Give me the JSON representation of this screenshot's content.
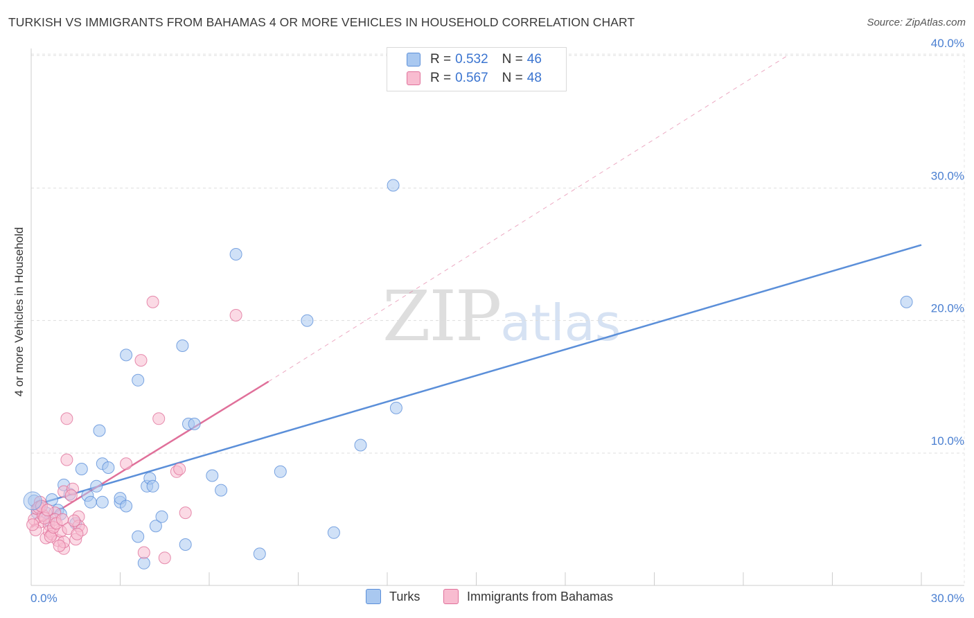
{
  "title": "TURKISH VS IMMIGRANTS FROM BAHAMAS 4 OR MORE VEHICLES IN HOUSEHOLD CORRELATION CHART",
  "source": "Source: ZipAtlas.com",
  "watermark": {
    "zip": "ZIP",
    "atlas": "atlas"
  },
  "legend": {
    "rows": [
      {
        "r_label": "R =",
        "r_value": "0.532",
        "n_label": "N =",
        "n_value": "46",
        "color": "#a9c8f0",
        "border": "#5b8fd9"
      },
      {
        "r_label": "R =",
        "r_value": "0.567",
        "n_label": "N =",
        "n_value": "48",
        "color": "#f8bcd0",
        "border": "#e0709a"
      }
    ]
  },
  "bottom_legend": [
    {
      "label": "Turks",
      "color": "#a9c8f0",
      "border": "#5b8fd9"
    },
    {
      "label": "Immigrants from Bahamas",
      "color": "#f8bcd0",
      "border": "#e0709a"
    }
  ],
  "chart_data": {
    "type": "scatter",
    "title": "TURKISH VS IMMIGRANTS FROM BAHAMAS 4 OR MORE VEHICLES IN HOUSEHOLD CORRELATION CHART",
    "xlabel": "",
    "ylabel": "4 or more Vehicles in Household",
    "xlim": [
      0,
      30
    ],
    "ylim": [
      0,
      41
    ],
    "x_tick_labels": [
      "0.0%",
      "30.0%"
    ],
    "y_ticks": [
      10,
      20,
      30,
      40
    ],
    "y_tick_labels": [
      "10.0%",
      "20.0%",
      "30.0%",
      "40.0%"
    ],
    "grid": true,
    "series": [
      {
        "name": "Turks",
        "color": "#5b8fd9",
        "fill": "#a9c8f0",
        "points": [
          [
            0.1,
            6.4
          ],
          [
            0.3,
            6.0
          ],
          [
            0.5,
            5.5
          ],
          [
            0.7,
            6.5
          ],
          [
            0.9,
            5.7
          ],
          [
            1.1,
            7.6
          ],
          [
            1.3,
            6.9
          ],
          [
            1.5,
            4.7
          ],
          [
            1.7,
            8.8
          ],
          [
            1.9,
            6.8
          ],
          [
            2.0,
            6.3
          ],
          [
            2.2,
            7.5
          ],
          [
            2.3,
            11.7
          ],
          [
            2.4,
            9.2
          ],
          [
            2.4,
            6.3
          ],
          [
            2.6,
            8.9
          ],
          [
            3.0,
            6.3
          ],
          [
            3.0,
            6.6
          ],
          [
            3.2,
            6.0
          ],
          [
            3.2,
            17.4
          ],
          [
            3.6,
            15.5
          ],
          [
            3.6,
            3.7
          ],
          [
            3.8,
            1.7
          ],
          [
            3.9,
            7.5
          ],
          [
            4.0,
            8.1
          ],
          [
            4.1,
            7.5
          ],
          [
            4.2,
            4.5
          ],
          [
            4.4,
            5.2
          ],
          [
            5.1,
            18.1
          ],
          [
            5.2,
            3.1
          ],
          [
            5.3,
            12.2
          ],
          [
            5.5,
            12.2
          ],
          [
            6.1,
            8.3
          ],
          [
            6.4,
            7.2
          ],
          [
            6.9,
            25.0
          ],
          [
            7.7,
            2.4
          ],
          [
            8.4,
            8.6
          ],
          [
            9.3,
            20.0
          ],
          [
            10.2,
            4.0
          ],
          [
            11.1,
            10.6
          ],
          [
            12.2,
            30.2
          ],
          [
            12.3,
            13.4
          ],
          [
            29.5,
            21.4
          ],
          [
            0.2,
            5.5
          ],
          [
            0.6,
            4.9
          ],
          [
            1.0,
            5.4
          ]
        ],
        "trend": {
          "x1": 0.0,
          "y1": 6.0,
          "x2": 30.0,
          "y2": 25.7
        }
      },
      {
        "name": "Immigrants from Bahamas",
        "color": "#e0709a",
        "fill": "#f8bcd0",
        "points": [
          [
            0.1,
            5.0
          ],
          [
            0.2,
            5.8
          ],
          [
            0.3,
            6.3
          ],
          [
            0.3,
            4.8
          ],
          [
            0.4,
            5.3
          ],
          [
            0.5,
            3.6
          ],
          [
            0.6,
            4.6
          ],
          [
            0.6,
            4.1
          ],
          [
            0.7,
            3.9
          ],
          [
            0.8,
            5.5
          ],
          [
            0.8,
            5.0
          ],
          [
            0.9,
            3.4
          ],
          [
            1.0,
            4.1
          ],
          [
            1.1,
            2.8
          ],
          [
            1.1,
            3.3
          ],
          [
            1.1,
            7.1
          ],
          [
            1.2,
            12.6
          ],
          [
            1.2,
            9.5
          ],
          [
            1.4,
            7.3
          ],
          [
            1.5,
            3.5
          ],
          [
            1.6,
            5.2
          ],
          [
            1.6,
            4.5
          ],
          [
            1.7,
            4.2
          ],
          [
            3.2,
            9.2
          ],
          [
            3.7,
            17.0
          ],
          [
            3.8,
            2.5
          ],
          [
            4.1,
            21.4
          ],
          [
            4.3,
            12.6
          ],
          [
            4.5,
            2.1
          ],
          [
            4.9,
            8.6
          ],
          [
            5.0,
            8.8
          ],
          [
            5.2,
            5.5
          ],
          [
            6.9,
            20.4
          ],
          [
            0.15,
            4.2
          ],
          [
            0.25,
            5.9
          ],
          [
            0.35,
            6.0
          ],
          [
            0.45,
            5.1
          ],
          [
            0.55,
            5.7
          ],
          [
            0.65,
            3.7
          ],
          [
            0.75,
            4.4
          ],
          [
            0.85,
            4.7
          ],
          [
            0.95,
            3.0
          ],
          [
            1.05,
            5.0
          ],
          [
            1.25,
            4.3
          ],
          [
            1.35,
            6.8
          ],
          [
            1.45,
            4.9
          ],
          [
            1.55,
            3.9
          ],
          [
            0.05,
            4.6
          ]
        ],
        "trend": {
          "x1": 0.0,
          "y1": 4.4,
          "x2": 8.0,
          "y2": 15.4
        },
        "trend_extension": {
          "x1": 8.0,
          "y1": 15.4,
          "x2": 25.5,
          "y2": 40.0
        }
      }
    ]
  }
}
